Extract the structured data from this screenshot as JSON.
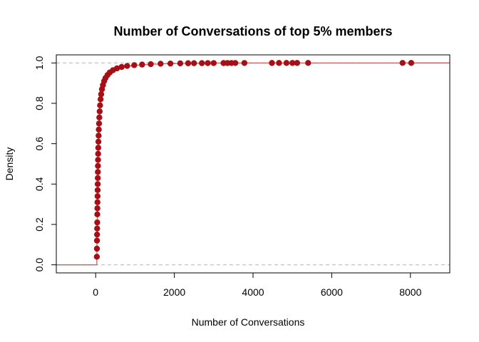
{
  "chart_data": {
    "type": "scatter",
    "title": "Number of Conversations of top 5% members",
    "xlabel": "Number of Conversations",
    "ylabel": "Density",
    "xlim": [
      -1000,
      9000
    ],
    "ylim": [
      -0.04,
      1.04
    ],
    "x_ticks": [
      0,
      2000,
      4000,
      6000,
      8000
    ],
    "x_tick_labels": [
      "0",
      "2000",
      "4000",
      "6000",
      "8000"
    ],
    "y_ticks": [
      0.0,
      0.2,
      0.4,
      0.6,
      0.8,
      1.0
    ],
    "y_tick_labels": [
      "0.0",
      "0.2",
      "0.4",
      "0.6",
      "0.8",
      "1.0"
    ],
    "reference_lines_y": [
      0,
      1
    ],
    "reference_line_color": "#bdbdbd",
    "point_color": "#a50f15",
    "step_line_color": "#cd5c5c",
    "grid": false,
    "legend": "none",
    "series": [
      {
        "points": [
          {
            "x": 30,
            "y": 0.04
          },
          {
            "x": 32,
            "y": 0.08
          },
          {
            "x": 34,
            "y": 0.12
          },
          {
            "x": 36,
            "y": 0.15
          },
          {
            "x": 38,
            "y": 0.18
          },
          {
            "x": 40,
            "y": 0.21
          },
          {
            "x": 42,
            "y": 0.25
          },
          {
            "x": 44,
            "y": 0.28
          },
          {
            "x": 46,
            "y": 0.31
          },
          {
            "x": 48,
            "y": 0.34
          },
          {
            "x": 50,
            "y": 0.37
          },
          {
            "x": 52,
            "y": 0.4
          },
          {
            "x": 54,
            "y": 0.43
          },
          {
            "x": 56,
            "y": 0.46
          },
          {
            "x": 58,
            "y": 0.49
          },
          {
            "x": 60,
            "y": 0.52
          },
          {
            "x": 63,
            "y": 0.55
          },
          {
            "x": 66,
            "y": 0.58
          },
          {
            "x": 70,
            "y": 0.61
          },
          {
            "x": 75,
            "y": 0.64
          },
          {
            "x": 80,
            "y": 0.67
          },
          {
            "x": 86,
            "y": 0.7
          },
          {
            "x": 93,
            "y": 0.73
          },
          {
            "x": 102,
            "y": 0.76
          },
          {
            "x": 112,
            "y": 0.79
          },
          {
            "x": 125,
            "y": 0.82
          },
          {
            "x": 140,
            "y": 0.845
          },
          {
            "x": 160,
            "y": 0.87
          },
          {
            "x": 185,
            "y": 0.89
          },
          {
            "x": 215,
            "y": 0.91
          },
          {
            "x": 250,
            "y": 0.925
          },
          {
            "x": 300,
            "y": 0.94
          },
          {
            "x": 360,
            "y": 0.953
          },
          {
            "x": 440,
            "y": 0.964
          },
          {
            "x": 540,
            "y": 0.973
          },
          {
            "x": 660,
            "y": 0.98
          },
          {
            "x": 800,
            "y": 0.985
          },
          {
            "x": 980,
            "y": 0.989
          },
          {
            "x": 1180,
            "y": 0.992
          },
          {
            "x": 1400,
            "y": 0.994
          },
          {
            "x": 1650,
            "y": 0.996
          },
          {
            "x": 1900,
            "y": 0.997
          },
          {
            "x": 2150,
            "y": 0.998
          },
          {
            "x": 2350,
            "y": 0.9985
          },
          {
            "x": 2500,
            "y": 0.9988
          },
          {
            "x": 2700,
            "y": 0.999
          },
          {
            "x": 2850,
            "y": 0.9992
          },
          {
            "x": 3000,
            "y": 0.9993
          },
          {
            "x": 3250,
            "y": 0.9994
          },
          {
            "x": 3350,
            "y": 0.9995
          },
          {
            "x": 3450,
            "y": 0.9996
          },
          {
            "x": 3550,
            "y": 0.9997
          },
          {
            "x": 3780,
            "y": 0.9998
          },
          {
            "x": 4480,
            "y": 0.99985
          },
          {
            "x": 4660,
            "y": 0.9999
          },
          {
            "x": 4850,
            "y": 0.99992
          },
          {
            "x": 5000,
            "y": 0.99994
          },
          {
            "x": 5120,
            "y": 0.99996
          },
          {
            "x": 5400,
            "y": 0.99998
          },
          {
            "x": 7800,
            "y": 0.99999
          },
          {
            "x": 8020,
            "y": 1.0
          }
        ]
      }
    ]
  }
}
